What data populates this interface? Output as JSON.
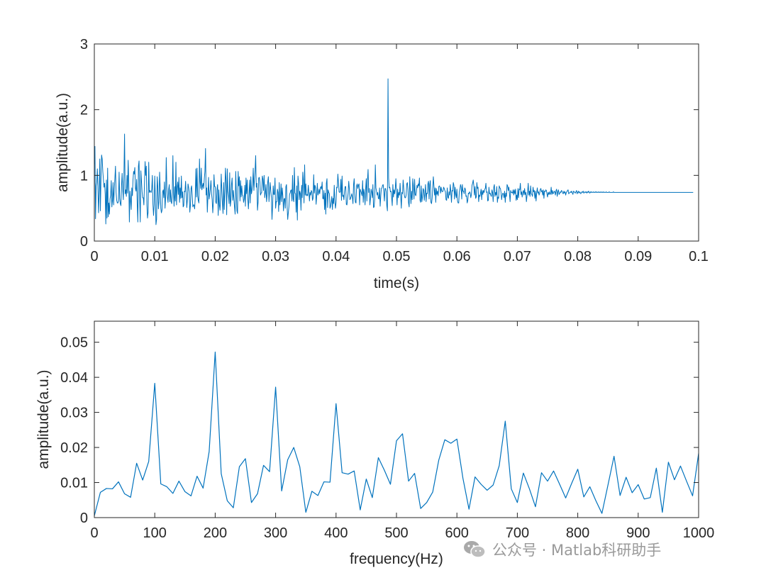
{
  "chart_data": [
    {
      "type": "line",
      "xlabel": "time(s)",
      "ylabel": "amplitude(a.u.)",
      "xlim": [
        0,
        0.1
      ],
      "ylim": [
        0,
        3
      ],
      "xticks": [
        0,
        0.01,
        0.02,
        0.03,
        0.04,
        0.05,
        0.06,
        0.07,
        0.08,
        0.09,
        0.1
      ],
      "xtick_labels": [
        "0",
        "0.01",
        "0.02",
        "0.03",
        "0.04",
        "0.05",
        "0.06",
        "0.07",
        "0.08",
        "0.09",
        "0.1"
      ],
      "yticks": [
        0,
        1,
        2,
        3
      ],
      "ytick_labels": [
        "0",
        "1",
        "2",
        "3"
      ],
      "color": "#0072BD",
      "x_start": 0,
      "x_step": 0.0001,
      "values": [
        1.16,
        1.44,
        0.34,
        0.84,
        0.89,
        1.1,
        0.78,
        0.43,
        0.77,
        1.25,
        0.46,
        0.95,
        1.31,
        1.25,
        1.06,
        0.94,
        0.82,
        0.88,
        0.71,
        0.26,
        0.93,
        0.35,
        1.11,
        0.37,
        0.58,
        0.41,
        0.64,
        0.7,
        0.92,
        0.52,
        0.62,
        0.89,
        0.55,
        0.79,
        0.95,
        1.14,
        0.74,
        0.62,
        0.58,
        0.58,
        0.61,
        1.05,
        0.65,
        0.57,
        0.54,
        0.83,
        1.03,
        0.79,
        0.63,
        1.0,
        1.63,
        0.72,
        0.78,
        0.68,
        1.0,
        0.73,
        1.23,
        0.88,
        0.29,
        0.76,
        0.63,
        0.48,
        0.81,
        0.69,
        0.93,
        1.06,
        1.02,
        1.12,
        0.8,
        0.76,
        0.94,
        0.56,
        0.29,
        1.14,
        1.22,
        0.65,
        0.29,
        1.07,
        0.91,
        0.75,
        0.66,
        0.66,
        0.55,
        0.89,
        1.21,
        1.0,
        1.14,
        0.55,
        0.35,
        0.44,
        1.2,
        0.74,
        0.77,
        0.75,
        0.74,
        0.79,
        1.0,
        0.56,
        0.39,
        0.55,
        0.99,
        0.66,
        0.25,
        0.33,
        0.98,
        0.83,
        0.49,
        0.59,
        1.05,
        0.8,
        0.5,
        0.43,
        0.47,
        0.75,
        0.78,
        0.66,
        0.9,
        0.5,
        0.67,
        1.27,
        0.81,
        0.67,
        0.59,
        0.79,
        0.86,
        0.6,
        0.78,
        0.6,
        0.57,
        0.74,
        1.3,
        0.71,
        0.53,
        0.83,
        0.61,
        1.2,
        0.55,
        0.81,
        0.9,
        0.71,
        0.97,
        0.59,
        0.81,
        0.65,
        0.99,
        0.66,
        0.75,
        0.52,
        0.54,
        0.76,
        0.75,
        0.91,
        0.72,
        0.51,
        0.63,
        0.87,
        0.82,
        0.75,
        0.44,
        0.54,
        0.8,
        0.84,
        0.69,
        0.52,
        0.55,
        0.55,
        0.49,
        0.67,
        1.1,
        0.67,
        1.11,
        0.69,
        0.62,
        0.58,
        1.25,
        0.91,
        0.8,
        1.11,
        0.78,
        0.84,
        0.88,
        0.8,
        0.95,
        1.06,
        1.41,
        0.7,
        0.81,
        0.44,
        0.69,
        0.97,
        0.64,
        0.71,
        0.8,
        0.92,
        0.72,
        0.63,
        0.43,
        0.6,
        1.01,
        0.83,
        0.83,
        0.59,
        0.57,
        0.8,
        0.86,
        0.39,
        0.78,
        0.55,
        0.47,
        0.68,
        1.02,
        0.76,
        0.57,
        0.42,
        0.89,
        0.48,
        0.77,
        1.11,
        0.91,
        0.4,
        1.1,
        0.76,
        0.69,
        0.57,
        1.04,
        0.53,
        0.61,
        0.86,
        0.96,
        0.62,
        0.77,
        0.64,
        0.52,
        0.41,
        1.06,
        0.73,
        0.46,
        0.42,
        1.06,
        0.84,
        0.98,
        0.61,
        0.92,
        0.67,
        0.84,
        0.7,
        0.69,
        0.59,
        0.64,
        0.85,
        0.53,
        0.96,
        0.72,
        0.93,
        0.64,
        0.49,
        0.7,
        0.93,
        0.58,
        0.98,
        0.72,
        0.78,
        0.86,
        1.11,
        0.77,
        0.94,
        1.07,
        1.3,
        0.82,
        0.88,
        0.47,
        0.59,
        0.96,
        0.97,
        0.9,
        0.7,
        0.73,
        0.74,
        0.99,
        0.94,
        0.77,
        1.0,
        0.66,
        0.73,
        0.86,
        0.6,
        0.7,
        0.9,
        0.98,
        0.6,
        0.75,
        0.89,
        0.76,
        0.67,
        0.33,
        0.53,
        0.84,
        0.71,
        0.71,
        0.96,
        0.5,
        0.6,
        0.6,
        0.79,
        0.74,
        0.45,
        0.89,
        0.55,
        0.66,
        0.87,
        0.6,
        0.81,
        0.68,
        0.46,
        0.64,
        0.65,
        0.5,
        0.83,
        0.86,
        0.53,
        0.33,
        0.43,
        0.52,
        0.71,
        0.73,
        0.77,
        0.78,
        0.61,
        1.0,
        0.64,
        0.6,
        1.12,
        0.73,
        0.72,
        0.44,
        0.84,
        0.32,
        0.99,
        0.88,
        0.63,
        0.76,
        0.72,
        0.47,
        0.85,
        0.66,
        1.05,
        0.91,
        0.58,
        1.16,
        0.7,
        0.87,
        0.69,
        0.71,
        0.69,
        0.85,
        0.75,
        0.61,
        0.74,
        0.7,
        0.77,
        0.75,
        0.62,
        0.65,
        1.01,
        0.73,
        0.85,
        0.82,
        0.56,
        0.69,
        0.88,
        0.7,
        0.73,
        0.79,
        0.72,
        0.81,
        0.83,
        0.79,
        0.9,
        0.65,
        0.64,
        0.77,
        0.48,
        0.73,
        0.41,
        0.88,
        0.95,
        0.51,
        0.78,
        0.74,
        0.72,
        0.5,
        0.53,
        0.6,
        0.68,
        0.48,
        0.65,
        0.57,
        0.85,
        0.62,
        0.5,
        0.58,
        0.82,
        0.81,
        1.02,
        0.89,
        0.75,
        0.74,
        0.75,
        0.94,
        0.62,
        0.99,
        0.68,
        0.7,
        0.63,
        0.76,
        0.83,
        0.83,
        0.56,
        0.55,
        0.64,
        0.73,
        0.91,
        0.8,
        0.63,
        0.65,
        0.68,
        0.72,
        0.67,
        0.57,
        0.86,
        0.95,
        0.71,
        0.59,
        0.58,
        0.84,
        0.87,
        0.8,
        0.85,
        0.87,
        0.55,
        0.79,
        0.76,
        0.73,
        0.69,
        0.92,
        0.59,
        0.79,
        0.72,
        0.55,
        0.8,
        0.95,
        0.61,
        0.92,
        1.09,
        0.74,
        0.8,
        0.55,
        0.65,
        0.79,
        0.75,
        0.66,
        0.86,
        0.51,
        0.52,
        0.64,
        1.16,
        0.81,
        0.76,
        0.7,
        0.74,
        0.65,
        0.64,
        0.81,
        0.53,
        0.69,
        0.8,
        0.81,
        0.85,
        0.86,
        0.75,
        0.61,
        0.8,
        0.8,
        0.75,
        0.54,
        0.46,
        2.47,
        0.96,
        0.81,
        0.82,
        0.75,
        0.76,
        0.66,
        0.54,
        0.86,
        0.67,
        0.78,
        0.72,
        0.8,
        0.95,
        0.74,
        0.55,
        0.79,
        0.66,
        0.74,
        0.7,
        0.88,
        0.69,
        0.5,
        0.74,
        0.72,
        0.93,
        0.81,
        0.7,
        0.66,
        0.66,
        0.7,
        0.87,
        0.89,
        0.78,
        0.58,
        0.52,
        0.98,
        0.75,
        0.57,
        0.76,
        0.63,
        0.95,
        0.83,
        0.64,
        0.94,
        0.71,
        0.69,
        0.75,
        0.85,
        0.81,
        0.87,
        0.84,
        0.96,
        0.62,
        0.59,
        0.84,
        0.6,
        0.67,
        0.8,
        0.78,
        0.62,
        0.72,
        0.86,
        0.6,
        0.73,
        0.72,
        0.87,
        0.91,
        0.64,
        0.86,
        0.92,
        0.59,
        0.57,
        0.65,
        0.81,
        0.98,
        0.84,
        0.7,
        0.81,
        0.59,
        0.8,
        0.71,
        0.76,
        0.69,
        0.83,
        0.84,
        0.82,
        0.73,
        0.82,
        0.76,
        0.75,
        0.76,
        0.82,
        0.8,
        0.77,
        0.75,
        0.63,
        0.62,
        0.81,
        0.67,
        0.65,
        0.75,
        0.7,
        0.86,
        0.75,
        0.59,
        0.77,
        0.76,
        0.89,
        0.85,
        0.64,
        0.82,
        0.71,
        0.66,
        0.79,
        0.61,
        0.58,
        0.58,
        0.75,
        0.79,
        0.86,
        0.82,
        0.64,
        0.86,
        0.76,
        0.76,
        0.72,
        0.81,
        0.79,
        0.68,
        0.69,
        0.58,
        0.62,
        0.73,
        0.72,
        0.75,
        0.73,
        0.66,
        0.71,
        0.85,
        0.88,
        0.93,
        0.84,
        0.7,
        0.83,
        0.65,
        0.67,
        0.89,
        0.8,
        0.82,
        0.6,
        0.7,
        0.68,
        0.73,
        0.79,
        0.63,
        0.77,
        0.71,
        0.77,
        0.74,
        0.79,
        0.8,
        0.88,
        0.74,
        0.75,
        0.61,
        0.62,
        0.82,
        0.72,
        0.73,
        0.7,
        0.68,
        0.78,
        0.74,
        0.6,
        0.82,
        0.86,
        0.68,
        0.74,
        0.7,
        0.83,
        0.59,
        0.67,
        0.65,
        0.84,
        0.81,
        0.8,
        0.74,
        0.63,
        0.7,
        0.73,
        0.72,
        0.66,
        0.76,
        0.59,
        0.73,
        0.68,
        0.86,
        0.84,
        0.77,
        0.82,
        0.72,
        0.6,
        0.77,
        0.74,
        0.74,
        0.73,
        0.78,
        0.7,
        0.78,
        0.72,
        0.79,
        0.62,
        0.7,
        0.63,
        0.8,
        0.66,
        0.79,
        0.78,
        0.88,
        0.71,
        0.75,
        0.67,
        0.74,
        0.77,
        0.7,
        0.8,
        0.71,
        0.74,
        0.6,
        0.69,
        0.75,
        0.88,
        0.7,
        0.76,
        0.68,
        0.84,
        0.72,
        0.71,
        0.68,
        0.82,
        0.75,
        0.77,
        0.65,
        0.76,
        0.61,
        0.73,
        0.81,
        0.73,
        0.75,
        0.7,
        0.73,
        0.79,
        0.8,
        0.75,
        0.77,
        0.7,
        0.78,
        0.65,
        0.76,
        0.75,
        0.78,
        0.77,
        0.72,
        0.67,
        0.74,
        0.71,
        0.75,
        0.71,
        0.72,
        0.82,
        0.71,
        0.77,
        0.72,
        0.73,
        0.76,
        0.75,
        0.7,
        0.77,
        0.79,
        0.68,
        0.75,
        0.78,
        0.71,
        0.72,
        0.75,
        0.74,
        0.77,
        0.76,
        0.73,
        0.72,
        0.76,
        0.73,
        0.75,
        0.7,
        0.74,
        0.75,
        0.77,
        0.78,
        0.72,
        0.73,
        0.74,
        0.75,
        0.74,
        0.76,
        0.73,
        0.71,
        0.76,
        0.75,
        0.74,
        0.73,
        0.75,
        0.77,
        0.72,
        0.74,
        0.76,
        0.73,
        0.75,
        0.74,
        0.72,
        0.74,
        0.75,
        0.74,
        0.76,
        0.73,
        0.74,
        0.75,
        0.74,
        0.75,
        0.73,
        0.75,
        0.74,
        0.76,
        0.74,
        0.73,
        0.75,
        0.74,
        0.75,
        0.74,
        0.74,
        0.75,
        0.74,
        0.74,
        0.75,
        0.74,
        0.75,
        0.74,
        0.74,
        0.75,
        0.74,
        0.74,
        0.75,
        0.74,
        0.74,
        0.75,
        0.74,
        0.74,
        0.75,
        0.74,
        0.74,
        0.74,
        0.75,
        0.74,
        0.74,
        0.74,
        0.74,
        0.75,
        0.74,
        0.74,
        0.74,
        0.74,
        0.74,
        0.74,
        0.75,
        0.74,
        0.74,
        0.74,
        0.74,
        0.74,
        0.74,
        0.74,
        0.74,
        0.74,
        0.74,
        0.74,
        0.74,
        0.74,
        0.74,
        0.74,
        0.74,
        0.74,
        0.74,
        0.74,
        0.74,
        0.74,
        0.74,
        0.74,
        0.74,
        0.74,
        0.74,
        0.74,
        0.74,
        0.74,
        0.74,
        0.74,
        0.74,
        0.74,
        0.74,
        0.74,
        0.74,
        0.74,
        0.74,
        0.74,
        0.74,
        0.74,
        0.74,
        0.74,
        0.74,
        0.74,
        0.74,
        0.74,
        0.74,
        0.74,
        0.74,
        0.74,
        0.74,
        0.74,
        0.74,
        0.74,
        0.74,
        0.74,
        0.74,
        0.74,
        0.74,
        0.74,
        0.74,
        0.74,
        0.74,
        0.74,
        0.74,
        0.74,
        0.74,
        0.74,
        0.74,
        0.74,
        0.74,
        0.74,
        0.74,
        0.74,
        0.74,
        0.74,
        0.74,
        0.74,
        0.74,
        0.74,
        0.74,
        0.74,
        0.74,
        0.74,
        0.74,
        0.74,
        0.74,
        0.74,
        0.74,
        0.74,
        0.74,
        0.74,
        0.74,
        0.74,
        0.74,
        0.74,
        0.74,
        0.74,
        0.74,
        0.74,
        0.74,
        0.74,
        0.74,
        0.74,
        0.74,
        0.74,
        0.74,
        0.74,
        0.74,
        0.74,
        0.74,
        0.74,
        0.74,
        0.74,
        0.74,
        0.74,
        0.74,
        0.74,
        0.74,
        0.74,
        0.74,
        0.74,
        0.74,
        0.74,
        0.74,
        0.74,
        0.74,
        0.74,
        0.74,
        0.74,
        0.74
      ]
    },
    {
      "type": "line",
      "xlabel": "frequency(Hz)",
      "ylabel": "amplitude(a.u.)",
      "xlim": [
        0,
        1000
      ],
      "ylim": [
        0,
        0.056
      ],
      "xticks": [
        0,
        100,
        200,
        300,
        400,
        500,
        600,
        700,
        800,
        900,
        1000
      ],
      "xtick_labels": [
        "0",
        "100",
        "200",
        "300",
        "400",
        "500",
        "600",
        "700",
        "800",
        "900",
        "1000"
      ],
      "yticks": [
        0,
        0.01,
        0.02,
        0.03,
        0.04,
        0.05
      ],
      "ytick_labels": [
        "0",
        "0.01",
        "0.02",
        "0.03",
        "0.04",
        "0.05"
      ],
      "color": "#0072BD",
      "x_start": 0,
      "x_step": 10,
      "values": [
        0.0005,
        0.0072,
        0.0083,
        0.0082,
        0.0102,
        0.0068,
        0.0058,
        0.0155,
        0.0107,
        0.016,
        0.0383,
        0.0096,
        0.0088,
        0.0069,
        0.0104,
        0.0074,
        0.0062,
        0.0118,
        0.0084,
        0.0188,
        0.0472,
        0.0125,
        0.0048,
        0.0028,
        0.0145,
        0.0168,
        0.0043,
        0.0068,
        0.0149,
        0.0131,
        0.0372,
        0.0076,
        0.0165,
        0.02,
        0.0145,
        0.0015,
        0.0075,
        0.0063,
        0.0102,
        0.0101,
        0.0325,
        0.0128,
        0.0124,
        0.0133,
        0.0022,
        0.011,
        0.0057,
        0.0171,
        0.0135,
        0.0095,
        0.0219,
        0.0239,
        0.0104,
        0.0126,
        0.0026,
        0.0043,
        0.0073,
        0.0164,
        0.0222,
        0.0212,
        0.0224,
        0.0112,
        0.0024,
        0.0116,
        0.0095,
        0.0078,
        0.0093,
        0.0148,
        0.0275,
        0.0082,
        0.0043,
        0.0127,
        0.0082,
        0.0031,
        0.0128,
        0.0104,
        0.0133,
        0.0095,
        0.0056,
        0.0098,
        0.0138,
        0.0059,
        0.0088,
        0.0048,
        0.0012,
        0.0093,
        0.0175,
        0.0063,
        0.0115,
        0.0071,
        0.0094,
        0.0053,
        0.0057,
        0.0141,
        0.0015,
        0.0158,
        0.0108,
        0.0147,
        0.0104,
        0.0062,
        0.0183
      ]
    }
  ],
  "watermark": {
    "text": "公众号 · Matlab科研助手",
    "icon": "wechat-icon"
  }
}
